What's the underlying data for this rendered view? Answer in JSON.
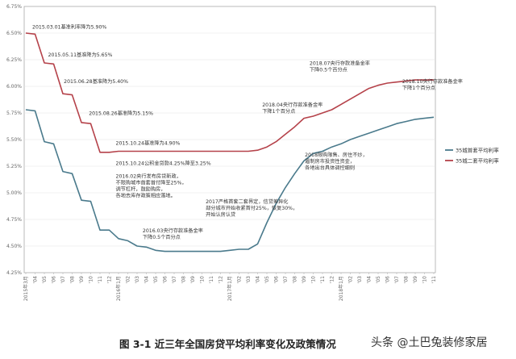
{
  "chart_data": {
    "type": "line",
    "title": "",
    "xlabel": "",
    "ylabel": "",
    "ylim": [
      4.25,
      6.75
    ],
    "y_ticks": [
      "4.25%",
      "4.50%",
      "4.75%",
      "5.00%",
      "5.25%",
      "5.50%",
      "5.75%",
      "6.00%",
      "6.25%",
      "6.50%",
      "6.75%"
    ],
    "x_tick_labels": [
      "2015年3月",
      "'04",
      "'05",
      "'06",
      "'07",
      "'08",
      "'09",
      "'10",
      "'11",
      "'12",
      "2016年1月",
      "'02",
      "'03",
      "'04",
      "'05",
      "'06",
      "'07",
      "'08",
      "'09",
      "'10",
      "'11",
      "'12",
      "2017年1月",
      "'02",
      "'03",
      "'04",
      "'05",
      "'06",
      "'07",
      "'08",
      "'09",
      "'10",
      "'11",
      "'12",
      "2018年1月",
      "'02",
      "'03",
      "'04",
      "'05",
      "'06",
      "'07",
      "'08",
      "'09",
      "'10",
      "'11"
    ],
    "grid": true,
    "legend_position": "right",
    "series": [
      {
        "name": "35城首套平均利率",
        "color": "#4a7a8c",
        "values": [
          5.78,
          5.77,
          5.48,
          5.46,
          5.2,
          5.18,
          4.93,
          4.92,
          4.65,
          4.65,
          4.57,
          4.55,
          4.5,
          4.49,
          4.46,
          4.45,
          4.45,
          4.45,
          4.45,
          4.45,
          4.45,
          4.45,
          4.46,
          4.47,
          4.47,
          4.52,
          4.72,
          4.9,
          5.05,
          5.18,
          5.3,
          5.37,
          5.39,
          5.43,
          5.46,
          5.5,
          5.53,
          5.56,
          5.59,
          5.62,
          5.65,
          5.67,
          5.69,
          5.7,
          5.71
        ]
      },
      {
        "name": "35城二套平均利率",
        "color": "#b5424a",
        "values": [
          6.5,
          6.49,
          6.22,
          6.21,
          5.93,
          5.92,
          5.66,
          5.65,
          5.38,
          5.38,
          5.39,
          5.39,
          5.39,
          5.39,
          5.39,
          5.39,
          5.39,
          5.39,
          5.39,
          5.39,
          5.39,
          5.39,
          5.39,
          5.39,
          5.39,
          5.4,
          5.43,
          5.48,
          5.55,
          5.62,
          5.7,
          5.72,
          5.75,
          5.78,
          5.83,
          5.88,
          5.93,
          5.98,
          6.01,
          6.03,
          6.04,
          6.05,
          6.06,
          6.06,
          6.06
        ]
      }
    ],
    "annotations": [
      {
        "lines": [
          "2015.03.01基准利率降为5.90%"
        ],
        "index": 0.7,
        "value": 6.54
      },
      {
        "lines": [
          "2015.05.11基准降为5.65%"
        ],
        "index": 2.4,
        "value": 6.28
      },
      {
        "lines": [
          "2015.06.28基准降为5.40%"
        ],
        "index": 4.1,
        "value": 6.03
      },
      {
        "lines": [
          "2015.08.26基准降为5.15%"
        ],
        "index": 6.8,
        "value": 5.73
      },
      {
        "lines": [
          "2015.10.24基准降为4.90%"
        ],
        "index": 9.7,
        "value": 5.45
      },
      {
        "lines": [
          "2015.10.24公积金贷款4.25%降至3.25%"
        ],
        "index": 9.7,
        "value": 5.26
      },
      {
        "lines": [
          "2016.02央行发布房贷新政，",
          "不限购城市首套首付降至25%，",
          "调节杠杆，鼓励购房，",
          "各地去库存政策相应落地。"
        ],
        "index": 9.7,
        "value": 5.14
      },
      {
        "lines": [
          "2016.03央行存款准备金率",
          "下降0.5个百分点"
        ],
        "index": 12.6,
        "value": 4.63
      },
      {
        "lines": [
          "2017严格首套二套界定，信贷差异化",
          "部分城市开始收紧首付25%，恢复30%，",
          "开始认房认贷"
        ],
        "index": 19.4,
        "value": 4.9
      },
      {
        "lines": [
          "2018.04央行存款准备金率",
          "下降1个百分点"
        ],
        "index": 25.5,
        "value": 5.81
      },
      {
        "lines": [
          "2018.07央行存款准备金率",
          "下降0.5个百分点"
        ],
        "index": 30.6,
        "value": 6.2
      },
      {
        "lines": [
          "2018.10央行存款准备金率",
          "下降1个百分点"
        ],
        "index": 40.6,
        "value": 6.03
      },
      {
        "lines": [
          "2018限购限售、房住不炒，",
          "遏制房市投资性资金，",
          "各地出台具体调控细则"
        ],
        "index": 30.1,
        "value": 5.34
      }
    ]
  },
  "caption": "图 3-1  近三年全国房贷平均利率变化及政策情况",
  "watermark": "头条 @土巴兔装修家居"
}
